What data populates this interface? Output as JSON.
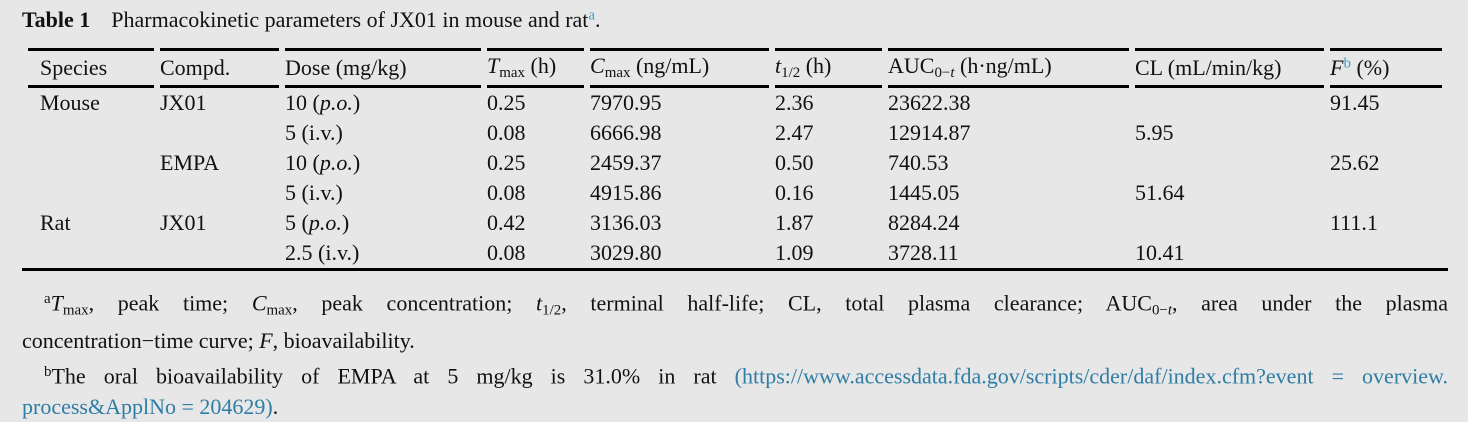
{
  "colors": {
    "page_background": "#e7e7e7",
    "text": "#111111",
    "rule": "#000000",
    "superscript_blue": "#3f9ec6",
    "link_blue": "#2e7da5"
  },
  "caption": {
    "label": "Table 1",
    "rest": [
      {
        "t": "Pharmacokinetic parameters of JX01 in mouse and rat"
      },
      {
        "t": "a",
        "s": "sp teal"
      },
      {
        "t": "."
      }
    ]
  },
  "table": {
    "headers": [
      [
        {
          "t": "Species"
        }
      ],
      [
        {
          "t": "Compd."
        }
      ],
      [
        {
          "t": "Dose (mg/kg)"
        }
      ],
      [
        {
          "t": "T",
          "s": "i"
        },
        {
          "t": "max",
          "s": "sb"
        },
        {
          "t": " (h)"
        }
      ],
      [
        {
          "t": "C",
          "s": "i"
        },
        {
          "t": "max",
          "s": "sb"
        },
        {
          "t": " (ng/mL)"
        }
      ],
      [
        {
          "t": "t",
          "s": "i"
        },
        {
          "t": "1/2",
          "s": "sb"
        },
        {
          "t": " (h)"
        }
      ],
      [
        {
          "t": "AUC"
        },
        {
          "t": "0−",
          "s": "sb"
        },
        {
          "t": "t",
          "s": "sb i"
        },
        {
          "t": " (h·ng/mL)"
        }
      ],
      [
        {
          "t": "CL (mL/min/kg)"
        }
      ],
      [
        {
          "t": "F",
          "s": "i"
        },
        {
          "t": "b",
          "s": "sp teal"
        },
        {
          "t": " (%)"
        }
      ]
    ],
    "rows": [
      {
        "species": "Mouse",
        "compound": "JX01",
        "dose": [
          {
            "t": "10 ("
          },
          {
            "t": "p.o.",
            "s": "i"
          },
          {
            "t": ")"
          }
        ],
        "tmax": "0.25",
        "cmax": "7970.95",
        "thalf": "2.36",
        "auc": "23622.38",
        "cl": "",
        "f": "91.45"
      },
      {
        "species": "",
        "compound": "",
        "dose": [
          {
            "t": "5 (i.v.)"
          }
        ],
        "tmax": "0.08",
        "cmax": "6666.98",
        "thalf": "2.47",
        "auc": "12914.87",
        "cl": "5.95",
        "f": ""
      },
      {
        "species": "",
        "compound": "EMPA",
        "dose": [
          {
            "t": "10 ("
          },
          {
            "t": "p.o.",
            "s": "i"
          },
          {
            "t": ")"
          }
        ],
        "tmax": "0.25",
        "cmax": "2459.37",
        "thalf": "0.50",
        "auc": "740.53",
        "cl": "",
        "f": "25.62"
      },
      {
        "species": "",
        "compound": "",
        "dose": [
          {
            "t": "5 (i.v.)"
          }
        ],
        "tmax": "0.08",
        "cmax": "4915.86",
        "thalf": "0.16",
        "auc": "1445.05",
        "cl": "51.64",
        "f": ""
      },
      {
        "species": "Rat",
        "compound": "JX01",
        "dose": [
          {
            "t": "5 ("
          },
          {
            "t": "p.o.",
            "s": "i"
          },
          {
            "t": ")"
          }
        ],
        "tmax": "0.42",
        "cmax": "3136.03",
        "thalf": "1.87",
        "auc": "8284.24",
        "cl": "",
        "f": "111.1"
      },
      {
        "species": "",
        "compound": "",
        "dose": [
          {
            "t": "2.5 (i.v.)"
          }
        ],
        "tmax": "0.08",
        "cmax": "3029.80",
        "thalf": "1.09",
        "auc": "3728.11",
        "cl": "10.41",
        "f": ""
      }
    ]
  },
  "footnotes": {
    "a": [
      [
        {
          "t": "a",
          "s": "sp"
        },
        {
          "t": "T",
          "s": "i"
        },
        {
          "t": "max",
          "s": "sb"
        },
        {
          "t": ", peak time; "
        },
        {
          "t": "C",
          "s": "i"
        },
        {
          "t": "max",
          "s": "sb"
        },
        {
          "t": ", peak concentration; "
        },
        {
          "t": "t",
          "s": "i"
        },
        {
          "t": "1/2",
          "s": "sb"
        },
        {
          "t": ", terminal half-life; CL, total plasma clearance; AUC"
        },
        {
          "t": "0−",
          "s": "sb"
        },
        {
          "t": "t",
          "s": "sb i"
        },
        {
          "t": ", area under the plasma"
        }
      ],
      [
        {
          "t": "concentration−time curve; "
        },
        {
          "t": "F",
          "s": "i"
        },
        {
          "t": ", bioavailability."
        }
      ]
    ],
    "b": [
      [
        {
          "t": "b",
          "s": "sp"
        },
        {
          "t": "The oral bioavailability of EMPA at 5 mg/kg is 31.0% in rat "
        },
        {
          "t": "(https://www.accessdata.fda.gov/scripts/cder/daf/index.cfm?event = overview.",
          "s": "link"
        }
      ],
      [
        {
          "t": "process&ApplNo = 204629)",
          "s": "link"
        },
        {
          "t": "."
        }
      ]
    ]
  }
}
